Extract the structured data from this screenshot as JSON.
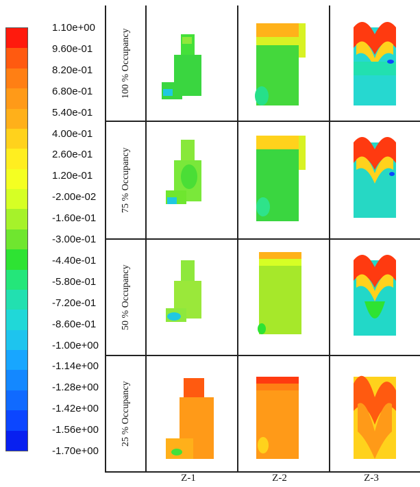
{
  "colorbar": {
    "labels": [
      "1.10e+00",
      "9.60e-01",
      "8.20e-01",
      "6.80e-01",
      "5.40e-01",
      "4.00e-01",
      "2.60e-01",
      "1.20e-01",
      "-2.00e-02",
      "-1.60e-01",
      "-3.00e-01",
      "-4.40e-01",
      "-5.80e-01",
      "-7.20e-01",
      "-8.60e-01",
      "-1.00e+00",
      "-1.14e+00",
      "-1.28e+00",
      "-1.42e+00",
      "-1.56e+00",
      "-1.70e+00"
    ],
    "colors": [
      "#ff1a0d",
      "#ff5a10",
      "#ff7f14",
      "#ff9a18",
      "#ffb01a",
      "#ffd21c",
      "#ffee20",
      "#f4ff22",
      "#d6ff25",
      "#a6f22a",
      "#6fe62f",
      "#2ee333",
      "#24e67a",
      "#22e0b0",
      "#20d8d8",
      "#1ec4ee",
      "#18a6ff",
      "#1488ff",
      "#106aff",
      "#0c46ff",
      "#0820f0"
    ]
  },
  "rows": [
    "100 % Occupancy",
    "75 % Occupancy",
    "50 % Occupancy",
    "25 % Occupancy"
  ],
  "columns": [
    "Z-1",
    "Z-2",
    "Z-3"
  ]
}
